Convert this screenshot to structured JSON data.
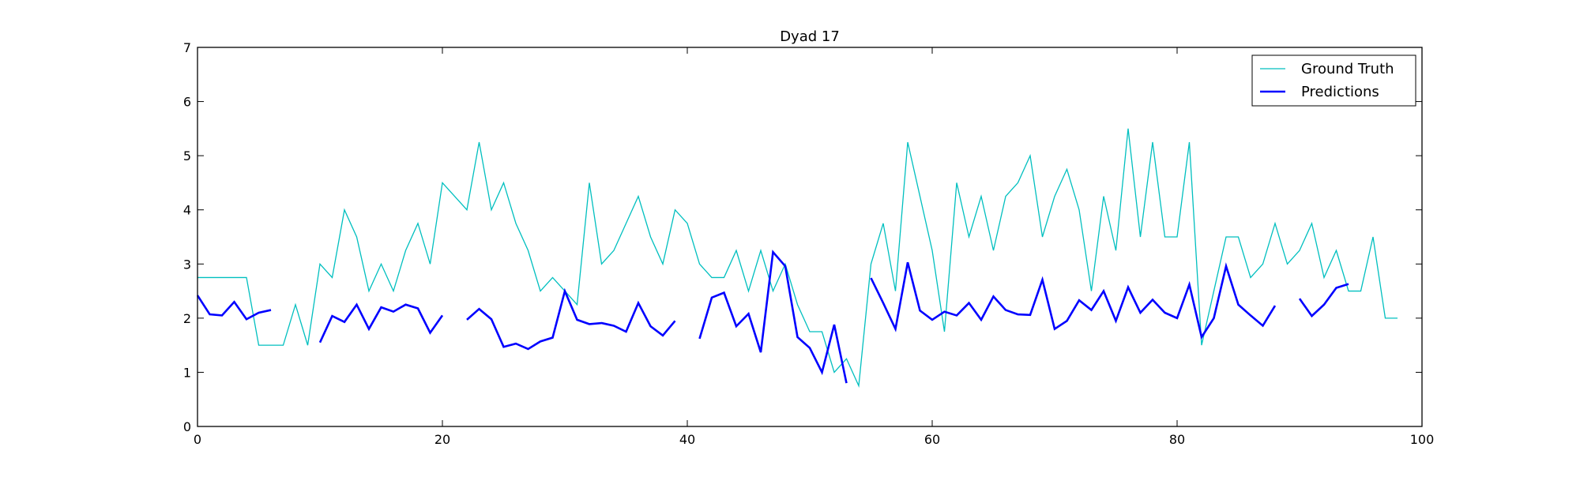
{
  "chart_data": {
    "type": "line",
    "title": "Dyad 17",
    "xlabel": "",
    "ylabel": "",
    "xlim": [
      0,
      100
    ],
    "ylim": [
      0,
      7
    ],
    "xticks": [
      0,
      20,
      40,
      60,
      80,
      100
    ],
    "yticks": [
      0,
      1,
      2,
      3,
      4,
      5,
      6,
      7
    ],
    "grid": false,
    "legend": {
      "placement": "top-right"
    },
    "series": [
      {
        "name": "Ground Truth",
        "color": "#00bfbf",
        "points": [
          [
            0,
            2.75
          ],
          [
            1,
            2.75
          ],
          [
            2,
            2.75
          ],
          [
            3,
            2.75
          ],
          [
            4,
            2.75
          ],
          [
            5,
            1.5
          ],
          [
            6,
            1.5
          ],
          [
            7,
            1.5
          ],
          [
            8,
            2.25
          ],
          [
            9,
            1.5
          ],
          [
            10,
            3.0
          ],
          [
            11,
            2.75
          ],
          [
            12,
            4.0
          ],
          [
            13,
            3.5
          ],
          [
            14,
            2.5
          ],
          [
            15,
            3.0
          ],
          [
            16,
            2.5
          ],
          [
            17,
            3.25
          ],
          [
            18,
            3.75
          ],
          [
            19,
            3.0
          ],
          [
            20,
            4.5
          ],
          [
            21,
            4.25
          ],
          [
            22,
            4.0
          ],
          [
            23,
            5.25
          ],
          [
            24,
            4.0
          ],
          [
            25,
            4.5
          ],
          [
            26,
            3.75
          ],
          [
            27,
            3.25
          ],
          [
            28,
            2.5
          ],
          [
            29,
            2.75
          ],
          [
            30,
            2.5
          ],
          [
            31,
            2.25
          ],
          [
            32,
            4.5
          ],
          [
            33,
            3.0
          ],
          [
            34,
            3.25
          ],
          [
            35,
            3.75
          ],
          [
            36,
            4.25
          ],
          [
            37,
            3.5
          ],
          [
            38,
            3.0
          ],
          [
            39,
            4.0
          ],
          [
            40,
            3.75
          ],
          [
            41,
            3.0
          ],
          [
            42,
            2.75
          ],
          [
            43,
            2.75
          ],
          [
            44,
            3.25
          ],
          [
            45,
            2.5
          ],
          [
            46,
            3.25
          ],
          [
            47,
            2.5
          ],
          [
            48,
            3.0
          ],
          [
            49,
            2.25
          ],
          [
            50,
            1.75
          ],
          [
            51,
            1.75
          ],
          [
            52,
            1.0
          ],
          [
            53,
            1.25
          ],
          [
            54,
            0.75
          ],
          [
            55,
            3.0
          ],
          [
            56,
            3.75
          ],
          [
            57,
            2.5
          ],
          [
            58,
            5.25
          ],
          [
            59,
            4.25
          ],
          [
            60,
            3.25
          ],
          [
            61,
            1.75
          ],
          [
            62,
            4.5
          ],
          [
            63,
            3.5
          ],
          [
            64,
            4.25
          ],
          [
            65,
            3.25
          ],
          [
            66,
            4.25
          ],
          [
            67,
            4.5
          ],
          [
            68,
            5.0
          ],
          [
            69,
            3.5
          ],
          [
            70,
            4.25
          ],
          [
            71,
            4.75
          ],
          [
            72,
            4.0
          ],
          [
            73,
            2.5
          ],
          [
            74,
            4.25
          ],
          [
            75,
            3.25
          ],
          [
            76,
            5.5
          ],
          [
            77,
            3.5
          ],
          [
            78,
            5.25
          ],
          [
            79,
            3.5
          ],
          [
            80,
            3.5
          ],
          [
            81,
            5.25
          ],
          [
            82,
            1.5
          ],
          [
            83,
            2.5
          ],
          [
            84,
            3.5
          ],
          [
            85,
            3.5
          ],
          [
            86,
            2.75
          ],
          [
            87,
            3.0
          ],
          [
            88,
            3.75
          ],
          [
            89,
            3.0
          ],
          [
            90,
            3.25
          ],
          [
            91,
            3.75
          ],
          [
            92,
            2.75
          ],
          [
            93,
            3.25
          ],
          [
            94,
            2.5
          ],
          [
            95,
            2.5
          ],
          [
            96,
            3.5
          ],
          [
            97,
            2.0
          ],
          [
            98,
            2.0
          ]
        ]
      },
      {
        "name": "Predictions",
        "color": "#0000ff",
        "points": [
          [
            0,
            2.42
          ],
          [
            1,
            2.07
          ],
          [
            2,
            2.05
          ],
          [
            3,
            2.3
          ],
          [
            4,
            1.98
          ],
          [
            5,
            2.1
          ],
          [
            6,
            2.15
          ],
          [
            7,
            null
          ],
          [
            8,
            null
          ],
          [
            9,
            null
          ],
          [
            10,
            1.55
          ],
          [
            11,
            2.04
          ],
          [
            12,
            1.93
          ],
          [
            13,
            2.25
          ],
          [
            14,
            1.8
          ],
          [
            15,
            2.2
          ],
          [
            16,
            2.12
          ],
          [
            17,
            2.25
          ],
          [
            18,
            2.18
          ],
          [
            19,
            1.73
          ],
          [
            20,
            2.05
          ],
          [
            21,
            null
          ],
          [
            22,
            1.97
          ],
          [
            23,
            2.17
          ],
          [
            24,
            1.98
          ],
          [
            25,
            1.47
          ],
          [
            26,
            1.53
          ],
          [
            27,
            1.43
          ],
          [
            28,
            1.57
          ],
          [
            29,
            1.64
          ],
          [
            30,
            2.5
          ],
          [
            31,
            1.97
          ],
          [
            32,
            1.89
          ],
          [
            33,
            1.91
          ],
          [
            34,
            1.86
          ],
          [
            35,
            1.75
          ],
          [
            36,
            2.28
          ],
          [
            37,
            1.85
          ],
          [
            38,
            1.68
          ],
          [
            39,
            1.95
          ],
          [
            40,
            null
          ],
          [
            41,
            1.62
          ],
          [
            42,
            2.38
          ],
          [
            43,
            2.47
          ],
          [
            44,
            1.85
          ],
          [
            45,
            2.08
          ],
          [
            46,
            1.37
          ],
          [
            47,
            3.22
          ],
          [
            48,
            2.96
          ],
          [
            49,
            1.65
          ],
          [
            50,
            1.45
          ],
          [
            51,
            1.0
          ],
          [
            52,
            1.88
          ],
          [
            53,
            0.8
          ],
          [
            54,
            null
          ],
          [
            55,
            2.74
          ],
          [
            56,
            2.28
          ],
          [
            57,
            1.8
          ],
          [
            58,
            3.03
          ],
          [
            59,
            2.14
          ],
          [
            60,
            1.97
          ],
          [
            61,
            2.12
          ],
          [
            62,
            2.05
          ],
          [
            63,
            2.28
          ],
          [
            64,
            1.97
          ],
          [
            65,
            2.4
          ],
          [
            66,
            2.15
          ],
          [
            67,
            2.07
          ],
          [
            68,
            2.06
          ],
          [
            69,
            2.71
          ],
          [
            70,
            1.8
          ],
          [
            71,
            1.95
          ],
          [
            72,
            2.33
          ],
          [
            73,
            2.15
          ],
          [
            74,
            2.5
          ],
          [
            75,
            1.95
          ],
          [
            76,
            2.57
          ],
          [
            77,
            2.1
          ],
          [
            78,
            2.34
          ],
          [
            79,
            2.1
          ],
          [
            80,
            2.0
          ],
          [
            81,
            2.62
          ],
          [
            82,
            1.65
          ],
          [
            83,
            2.0
          ],
          [
            84,
            2.96
          ],
          [
            85,
            2.25
          ],
          [
            86,
            2.05
          ],
          [
            87,
            1.86
          ],
          [
            88,
            2.23
          ],
          [
            89,
            null
          ],
          [
            90,
            2.36
          ],
          [
            91,
            2.04
          ],
          [
            92,
            2.25
          ],
          [
            93,
            2.56
          ],
          [
            94,
            2.63
          ]
        ]
      }
    ]
  }
}
